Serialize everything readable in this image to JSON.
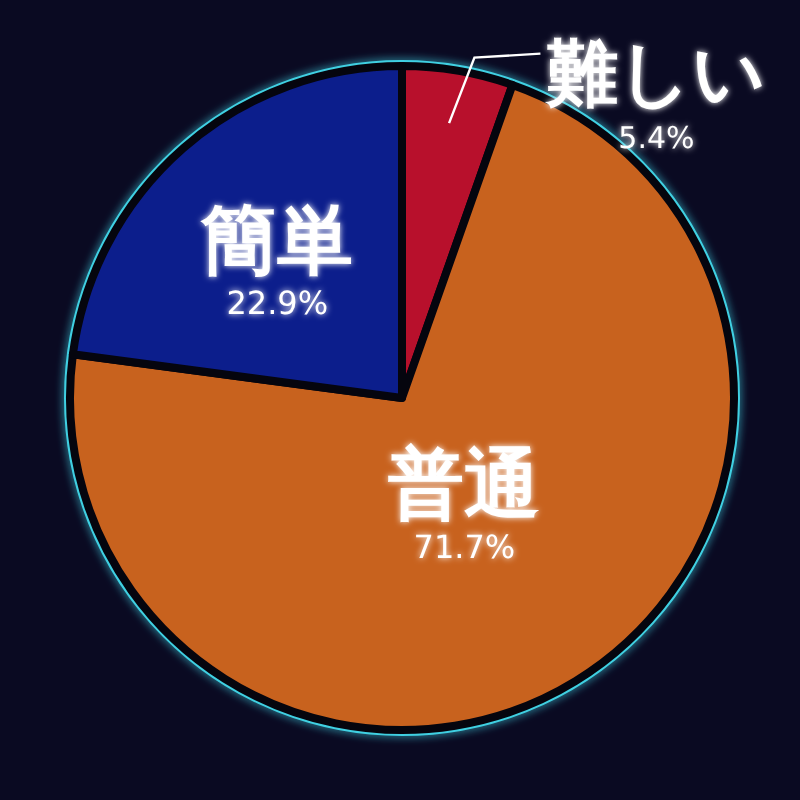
{
  "chart_data": {
    "type": "pie",
    "categories": [
      "難しい",
      "普通",
      "簡単"
    ],
    "values": [
      5.4,
      71.7,
      22.9
    ],
    "colors": [
      "#b8102c",
      "#c8621e",
      "#0c1e8c"
    ],
    "value_labels": [
      "5.4%",
      "71.7%",
      "22.9%"
    ]
  }
}
